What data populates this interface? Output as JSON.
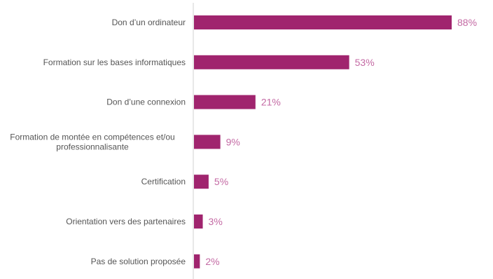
{
  "chart_data": {
    "type": "bar",
    "orientation": "horizontal",
    "categories": [
      "Don d’un ordinateur",
      "Formation sur les bases informatiques",
      "Don d’une connexion",
      "Formation de montée en compétences et/ou professionnalisante",
      "Certification",
      "Orientation vers des partenaires",
      "Pas de solution proposée"
    ],
    "values": [
      88,
      53,
      21,
      9,
      5,
      3,
      2
    ],
    "value_labels": [
      "88%",
      "53%",
      "21%",
      "9%",
      "5%",
      "3%",
      "2%"
    ],
    "title": "",
    "xlabel": "",
    "ylabel": "",
    "xlim": [
      0,
      100
    ],
    "grid": false,
    "legend": "none",
    "bar_color": "#a0246e",
    "label_color": "#c46aa4",
    "clipped_left_label": "%"
  }
}
